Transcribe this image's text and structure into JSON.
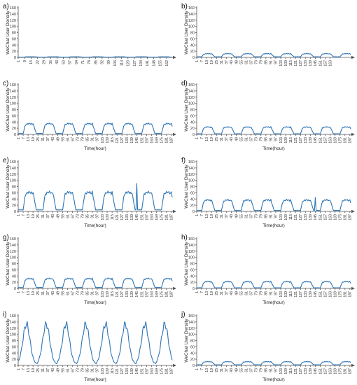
{
  "figure": {
    "ylabel": "WeChat User Density",
    "xlabel": "Time(hour)"
  },
  "chart_data": [
    {
      "type": "line",
      "panel_label": "a)",
      "ylabel": "WeChat User Density",
      "xlabel": "",
      "ylim": [
        0,
        160
      ],
      "yticks": [
        0,
        20,
        40,
        60,
        80,
        100,
        120,
        140,
        160
      ],
      "x_range": [
        1,
        168
      ],
      "xticks": [
        1,
        8,
        15,
        22,
        29,
        36,
        43,
        50,
        57,
        64,
        71,
        78,
        85,
        92,
        99,
        106,
        113,
        120,
        127,
        134,
        141,
        148,
        155,
        162
      ],
      "daily_pattern": {
        "base": 1,
        "peak": 2
      },
      "spikes": []
    },
    {
      "type": "line",
      "panel_label": "b)",
      "ylabel": "WeChat User Density",
      "xlabel": "",
      "ylim": [
        0,
        160
      ],
      "yticks": [
        0,
        20,
        40,
        60,
        80,
        100,
        120,
        140,
        160
      ],
      "x_range": [
        1,
        188
      ],
      "xticks": [
        1,
        7,
        13,
        19,
        25,
        31,
        37,
        43,
        49,
        55,
        61,
        67,
        73,
        79,
        85,
        91,
        97,
        103,
        109,
        115,
        121,
        127,
        133,
        139,
        145,
        151,
        157,
        163
      ],
      "daily_pattern": {
        "base": 2,
        "peak": 12
      },
      "spikes": []
    },
    {
      "type": "line",
      "panel_label": "c)",
      "ylabel": "WeChat User Density",
      "xlabel": "Time(hour)",
      "ylim": [
        0,
        160
      ],
      "yticks": [
        0,
        20,
        40,
        60,
        80,
        100,
        120,
        140,
        160
      ],
      "x_range": [
        1,
        188
      ],
      "xticks": [
        1,
        7,
        13,
        19,
        25,
        31,
        37,
        43,
        49,
        55,
        61,
        67,
        73,
        79,
        85,
        91,
        97,
        103,
        109,
        115,
        121,
        127,
        133,
        139,
        145,
        151,
        157,
        163,
        169,
        175,
        181,
        187
      ],
      "daily_pattern": {
        "base": 3,
        "peak": 35
      },
      "spikes": []
    },
    {
      "type": "line",
      "panel_label": "d)",
      "ylabel": "WeChat User Density",
      "xlabel": "Time(hour)",
      "ylim": [
        0,
        160
      ],
      "yticks": [
        0,
        20,
        40,
        60,
        80,
        100,
        120,
        140,
        160
      ],
      "x_range": [
        1,
        188
      ],
      "xticks": [
        1,
        7,
        13,
        19,
        25,
        31,
        37,
        43,
        49,
        55,
        61,
        67,
        73,
        79,
        85,
        91,
        97,
        103,
        109,
        115,
        121,
        127,
        133,
        139,
        145,
        151,
        157,
        163,
        169,
        175,
        181,
        187
      ],
      "daily_pattern": {
        "base": 2,
        "peak": 24
      },
      "spikes": []
    },
    {
      "type": "line",
      "panel_label": "e)",
      "ylabel": "WeChat User Density",
      "xlabel": "Time(hour)",
      "ylim": [
        0,
        160
      ],
      "yticks": [
        0,
        20,
        40,
        60,
        80,
        100,
        120,
        140,
        160
      ],
      "x_range": [
        1,
        188
      ],
      "xticks": [
        1,
        7,
        13,
        19,
        25,
        31,
        37,
        43,
        49,
        55,
        61,
        67,
        73,
        79,
        85,
        91,
        97,
        103,
        109,
        115,
        121,
        127,
        133,
        139,
        145,
        151,
        157,
        163,
        169,
        175,
        181,
        187
      ],
      "daily_pattern": {
        "base": 5,
        "peak": 62
      },
      "spikes": [
        {
          "x": 145,
          "y": 90
        }
      ]
    },
    {
      "type": "line",
      "panel_label": "f)",
      "ylabel": "WeChat User Density",
      "xlabel": "Time(hour)",
      "ylim": [
        0,
        160
      ],
      "yticks": [
        0,
        20,
        40,
        60,
        80,
        100,
        120,
        140,
        160
      ],
      "x_range": [
        1,
        188
      ],
      "xticks": [
        1,
        7,
        13,
        19,
        25,
        31,
        37,
        43,
        49,
        55,
        61,
        67,
        73,
        79,
        85,
        91,
        97,
        103,
        109,
        115,
        121,
        127,
        133,
        139,
        145,
        151,
        157,
        163,
        169,
        175,
        181,
        187
      ],
      "daily_pattern": {
        "base": 3,
        "peak": 37
      },
      "spikes": [
        {
          "x": 145,
          "y": 45
        }
      ]
    },
    {
      "type": "line",
      "panel_label": "g)",
      "ylabel": "WeChat User Density",
      "xlabel": "Time(hour)",
      "ylim": [
        0,
        160
      ],
      "yticks": [
        0,
        20,
        40,
        60,
        80,
        100,
        120,
        140,
        160
      ],
      "x_range": [
        1,
        188
      ],
      "xticks": [
        1,
        7,
        13,
        19,
        25,
        31,
        37,
        43,
        49,
        55,
        61,
        67,
        73,
        79,
        85,
        91,
        97,
        103,
        109,
        115,
        121,
        127,
        133,
        139,
        145,
        151,
        157,
        163,
        169,
        175,
        181,
        187
      ],
      "daily_pattern": {
        "base": 3,
        "peak": 32
      },
      "spikes": []
    },
    {
      "type": "line",
      "panel_label": "h)",
      "ylabel": "WeChat User Density",
      "xlabel": "Time(hour)",
      "ylim": [
        0,
        160
      ],
      "yticks": [
        0,
        20,
        40,
        60,
        80,
        100,
        120,
        140,
        160
      ],
      "x_range": [
        1,
        188
      ],
      "xticks": [
        1,
        7,
        13,
        19,
        25,
        31,
        37,
        43,
        49,
        55,
        61,
        67,
        73,
        79,
        85,
        91,
        97,
        103,
        109,
        115,
        121,
        127,
        133,
        139,
        145,
        151,
        157,
        163,
        169,
        175,
        181,
        187
      ],
      "daily_pattern": {
        "base": 2,
        "peak": 22
      },
      "spikes": []
    },
    {
      "type": "line",
      "panel_label": "i)",
      "ylabel": "WeChat User Density",
      "xlabel": "Time(hour)",
      "ylim": [
        0,
        160
      ],
      "yticks": [
        0,
        20,
        40,
        60,
        80,
        100,
        120,
        140,
        160
      ],
      "x_range": [
        1,
        188
      ],
      "xticks": [
        1,
        7,
        13,
        19,
        25,
        31,
        37,
        43,
        49,
        55,
        61,
        67,
        73,
        79,
        85,
        91,
        97,
        103,
        109,
        115,
        121,
        127,
        133,
        139,
        145,
        151,
        157,
        163,
        169,
        175,
        181,
        187
      ],
      "daily_pattern": {
        "base": 5,
        "peak": 145
      },
      "spikes": []
    },
    {
      "type": "line",
      "panel_label": "j)",
      "ylabel": "WeChat User Density",
      "xlabel": "Time(hour)",
      "ylim": [
        0,
        160
      ],
      "yticks": [
        0,
        20,
        40,
        60,
        80,
        100,
        120,
        140,
        160
      ],
      "x_range": [
        1,
        188
      ],
      "xticks": [
        1,
        7,
        13,
        19,
        25,
        31,
        37,
        43,
        49,
        55,
        61,
        67,
        73,
        79,
        85,
        91,
        97,
        103,
        109,
        115,
        121,
        127,
        133,
        139,
        145,
        151,
        157,
        163,
        169,
        175,
        181,
        187
      ],
      "daily_pattern": {
        "base": 2,
        "peak": 12
      },
      "spikes": []
    }
  ],
  "style": {
    "line_color": "#2e75b6",
    "axis_color": "#555555"
  }
}
